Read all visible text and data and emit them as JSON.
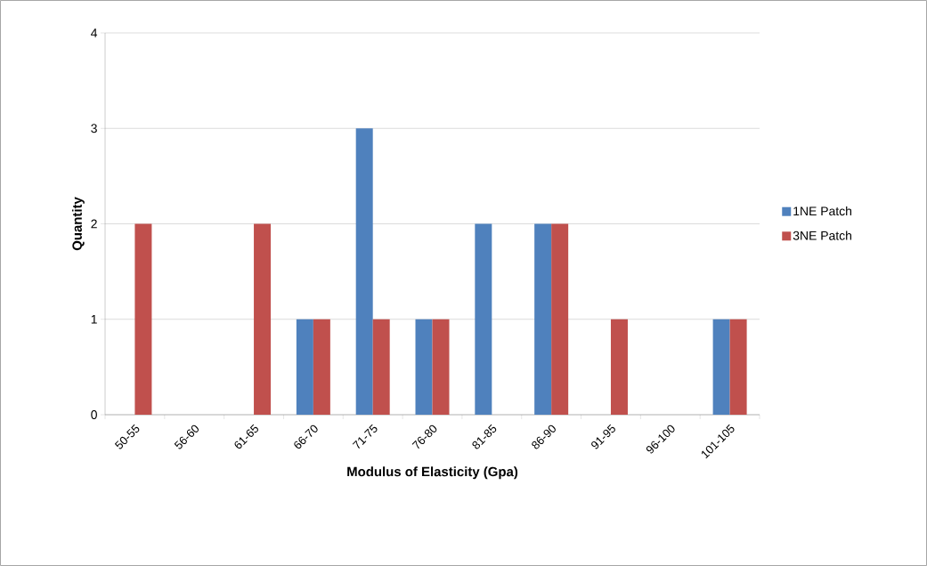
{
  "chart_data": {
    "type": "bar",
    "xlabel": "Modulus of Elasticity (Gpa)",
    "ylabel": "Quantity",
    "categories": [
      "50-55",
      "56-60",
      "61-65",
      "66-70",
      "71-75",
      "76-80",
      "81-85",
      "86-90",
      "91-95",
      "96-100",
      "101-105"
    ],
    "series": [
      {
        "name": "1NE Patch",
        "color": "#4f81bd",
        "values": [
          0,
          0,
          0,
          1,
          3,
          1,
          2,
          2,
          0,
          0,
          1
        ]
      },
      {
        "name": "3NE Patch",
        "color": "#c0504d",
        "values": [
          2,
          0,
          2,
          1,
          1,
          1,
          0,
          2,
          1,
          0,
          1
        ]
      }
    ],
    "ylim": [
      0,
      4
    ],
    "yticks": [
      0,
      1,
      2,
      3,
      4
    ],
    "grid": "y",
    "legend": "right"
  }
}
